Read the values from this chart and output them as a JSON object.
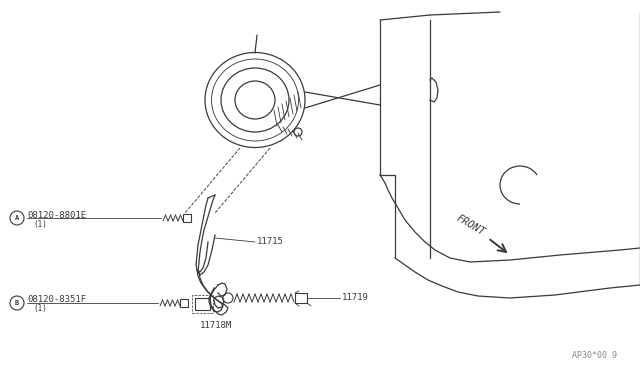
{
  "bg_color": "#ffffff",
  "line_color": "#3a3a3a",
  "label_A_num": "08120-8801E",
  "label_B_num": "08120-8351F",
  "label_11715": "11715",
  "label_11719": "11719",
  "label_11718M": "11718M",
  "label_front": "FRONT",
  "label_ref": "AP30*00 9",
  "figsize": [
    6.4,
    3.72
  ],
  "dpi": 100
}
